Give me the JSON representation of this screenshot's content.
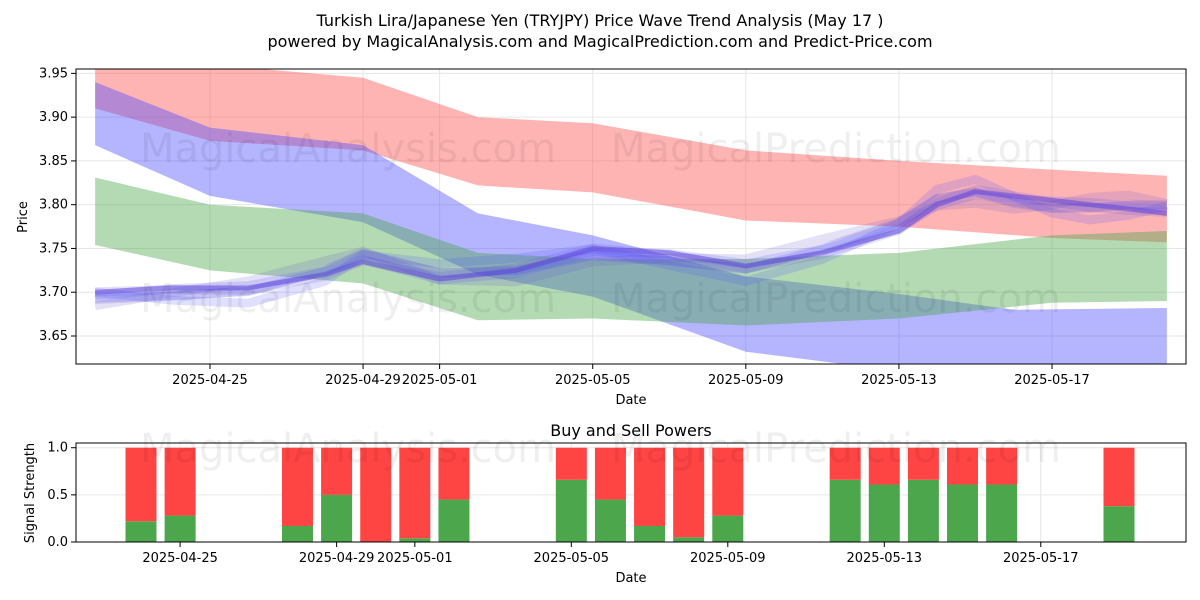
{
  "title_line1": "Turkish Lira/Japanese Yen (TRYJPY) Price Wave Trend Analysis (May 17 )",
  "title_line2": "powered by MagicalAnalysis.com and MagicalPrediction.com and Predict-Price.com",
  "watermarks": [
    "MagicalAnalysis.com",
    "MagicalPrediction.com"
  ],
  "colors": {
    "red_band": "#ff4d4d",
    "blue_band": "#4d4dff",
    "green_band": "#4ca64c",
    "buy": "#4ca64c",
    "sell": "#ff4444",
    "grid": "#e6e6e6"
  },
  "chart_data": [
    {
      "type": "area",
      "xlabel": "Date",
      "ylabel": "Price",
      "xlim": [
        "2025-04-21T12:00",
        "2025-05-20T12:00"
      ],
      "ylim": [
        3.618,
        3.955
      ],
      "grid": true,
      "x_ticks": [
        "2025-04-25",
        "2025-04-29",
        "2025-05-01",
        "2025-05-05",
        "2025-05-09",
        "2025-05-13",
        "2025-05-17"
      ],
      "y_ticks": [
        "3.65",
        "3.70",
        "3.75",
        "3.80",
        "3.85",
        "3.90",
        "3.95"
      ],
      "bands": [
        {
          "color": "red",
          "x": [
            "2025-04-22",
            "2025-04-25",
            "2025-04-29",
            "2025-05-02",
            "2025-05-05",
            "2025-05-09",
            "2025-05-13",
            "2025-05-17",
            "2025-05-20"
          ],
          "upper": [
            3.96,
            3.96,
            3.945,
            3.9,
            3.893,
            3.862,
            3.85,
            3.84,
            3.833
          ],
          "lower": [
            3.91,
            3.873,
            3.862,
            3.822,
            3.814,
            3.782,
            3.775,
            3.762,
            3.757
          ]
        },
        {
          "color": "blue",
          "x": [
            "2025-04-22",
            "2025-04-25",
            "2025-04-29",
            "2025-05-02",
            "2025-05-05",
            "2025-05-09",
            "2025-05-13",
            "2025-05-16",
            "2025-05-20"
          ],
          "upper": [
            3.94,
            3.888,
            3.868,
            3.79,
            3.765,
            3.718,
            3.698,
            3.68,
            3.682
          ],
          "lower": [
            3.868,
            3.81,
            3.78,
            3.72,
            3.695,
            3.632,
            3.61,
            3.61,
            3.615
          ]
        },
        {
          "color": "green",
          "x": [
            "2025-04-22",
            "2025-04-25",
            "2025-04-29",
            "2025-05-02",
            "2025-05-05",
            "2025-05-09",
            "2025-05-13",
            "2025-05-17",
            "2025-05-20"
          ],
          "upper": [
            3.831,
            3.8,
            3.79,
            3.745,
            3.738,
            3.738,
            3.745,
            3.765,
            3.77
          ],
          "lower": [
            3.754,
            3.725,
            3.71,
            3.668,
            3.67,
            3.662,
            3.67,
            3.688,
            3.69
          ]
        }
      ],
      "wave_lines": [
        {
          "x": [
            "2025-04-22",
            "2025-04-24",
            "2025-04-26",
            "2025-04-28",
            "2025-04-29",
            "2025-05-01",
            "2025-05-03",
            "2025-05-05",
            "2025-05-07",
            "2025-05-09",
            "2025-05-11",
            "2025-05-13",
            "2025-05-14",
            "2025-05-15",
            "2025-05-16",
            "2025-05-17",
            "2025-05-18",
            "2025-05-19",
            "2025-05-20"
          ],
          "y": [
            3.7,
            3.705,
            3.705,
            3.72,
            3.735,
            3.715,
            3.725,
            3.75,
            3.745,
            3.73,
            3.745,
            3.77,
            3.8,
            3.815,
            3.81,
            3.805,
            3.8,
            3.795,
            3.79
          ]
        }
      ]
    },
    {
      "type": "bar",
      "title": "Buy and Sell Powers",
      "xlabel": "Date",
      "ylabel": "Signal Strength",
      "ylim": [
        0,
        1.05
      ],
      "y_ticks": [
        "0.0",
        "0.5",
        "1.0"
      ],
      "x_ticks": [
        "2025-04-25",
        "2025-04-29",
        "2025-05-01",
        "2025-05-05",
        "2025-05-09",
        "2025-05-13",
        "2025-05-17"
      ],
      "categories": [
        "2025-04-24",
        "2025-04-25",
        "2025-04-28",
        "2025-04-29",
        "2025-04-30",
        "2025-05-01",
        "2025-05-02",
        "2025-05-05",
        "2025-05-06",
        "2025-05-07",
        "2025-05-08",
        "2025-05-09",
        "2025-05-12",
        "2025-05-13",
        "2025-05-14",
        "2025-05-15",
        "2025-05-16",
        "2025-05-19"
      ],
      "buy": [
        0.22,
        0.28,
        0.17,
        0.5,
        0.0,
        0.04,
        0.45,
        0.66,
        0.45,
        0.17,
        0.05,
        0.28,
        0.66,
        0.61,
        0.66,
        0.61,
        0.61,
        0.38
      ],
      "sell": [
        0.78,
        0.72,
        0.83,
        0.5,
        1.0,
        0.96,
        0.55,
        0.34,
        0.55,
        0.83,
        0.95,
        0.72,
        0.34,
        0.39,
        0.34,
        0.39,
        0.39,
        0.62
      ]
    }
  ]
}
